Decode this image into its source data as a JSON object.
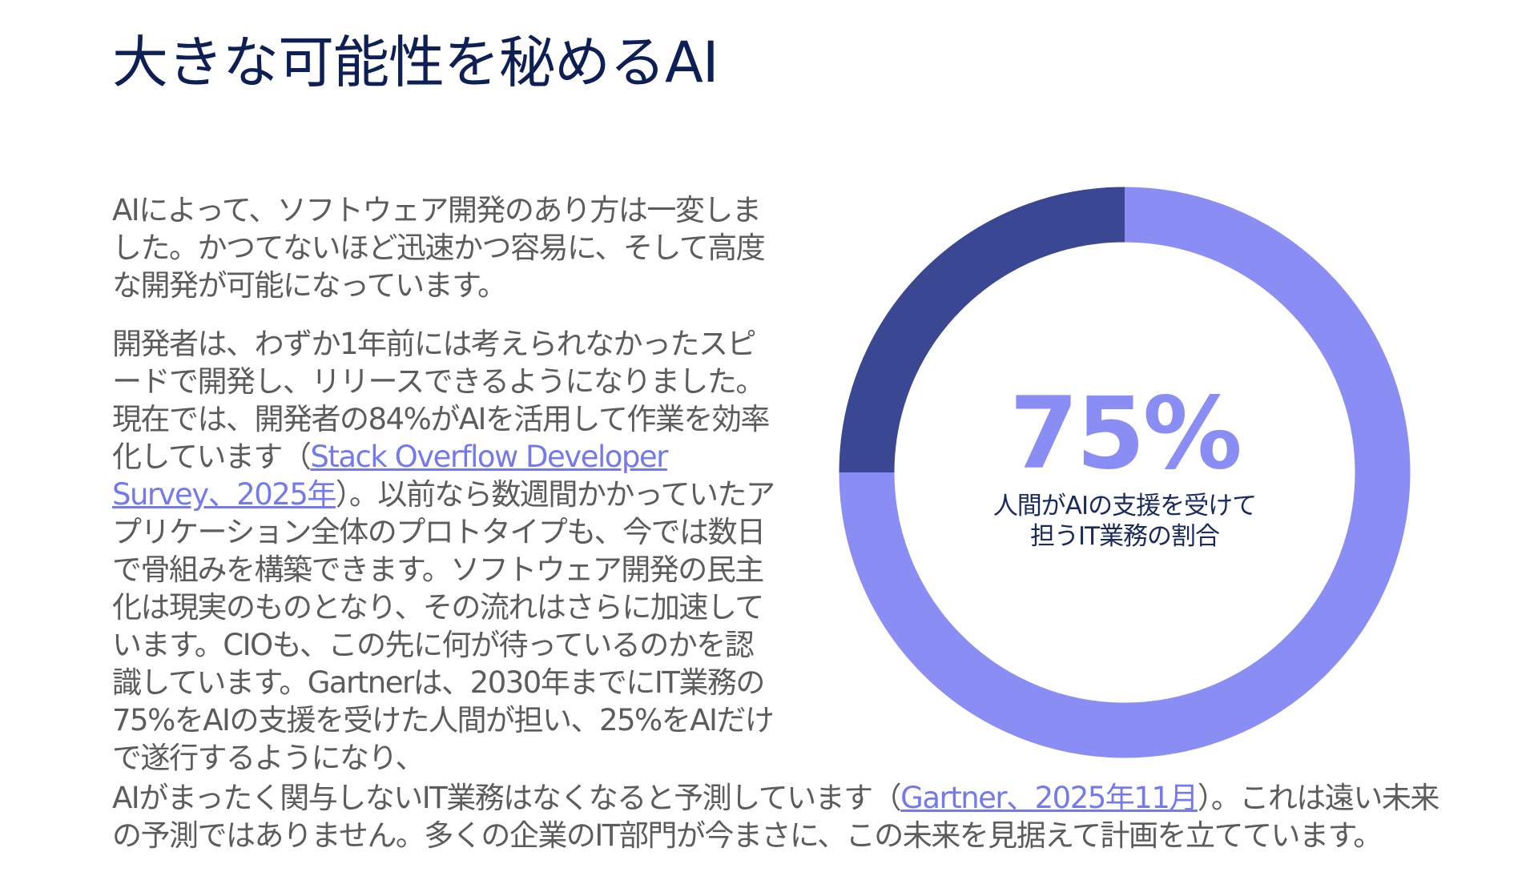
{
  "header": {
    "title": "大きな可能性を秘めるAI"
  },
  "article": {
    "paragraphs": [
      {
        "parts": [
          {
            "text": "AIによって、ソフトウェア開発のあり方は一変しました。かつてないほど迅速かつ容易に、そして高度な開発が可能になっています。"
          }
        ]
      },
      {
        "parts": [
          {
            "text": "開発者は、わずか1年前には考えられなかったスピードで開発し、リリースできるようになりました。現在では、開発者の84%がAIを活用して作業を効率化しています（"
          },
          {
            "link": "Stack Overflow Developer Survey、2025年"
          },
          {
            "text": "）。以前なら数週間かかっていたアプリケーション全体のプロトタイプも、今では数日で骨組みを構築できます。ソフトウェア開発の民主化は現実のものとなり、その流れはさらに加速しています。CIOも、この先に何が待っているのかを認識しています。Gartnerは、2030年までにIT業務の75%をAIの支援を受けた人間が担い、25%をAIだけで遂行するようになり、"
          }
        ]
      },
      {
        "parts": [
          {
            "text": "AIがまったく関与しないIT業務はなくなると予測しています（"
          },
          {
            "link": "Gartner、2025年11月"
          },
          {
            "text": "）。これは遠い未来の予測ではありません。多くの企業のIT部門が今まさに、この未来を見据えて計画を立てています。"
          }
        ]
      }
    ]
  },
  "chart_data": {
    "type": "donut",
    "values": [
      75,
      25
    ],
    "value_labels": [
      "75%",
      null
    ],
    "colors": [
      "#8a8df4",
      "#3a4893"
    ],
    "caption": [
      "人間がAIの支援を受けて",
      "担うIT業務の割合"
    ]
  }
}
